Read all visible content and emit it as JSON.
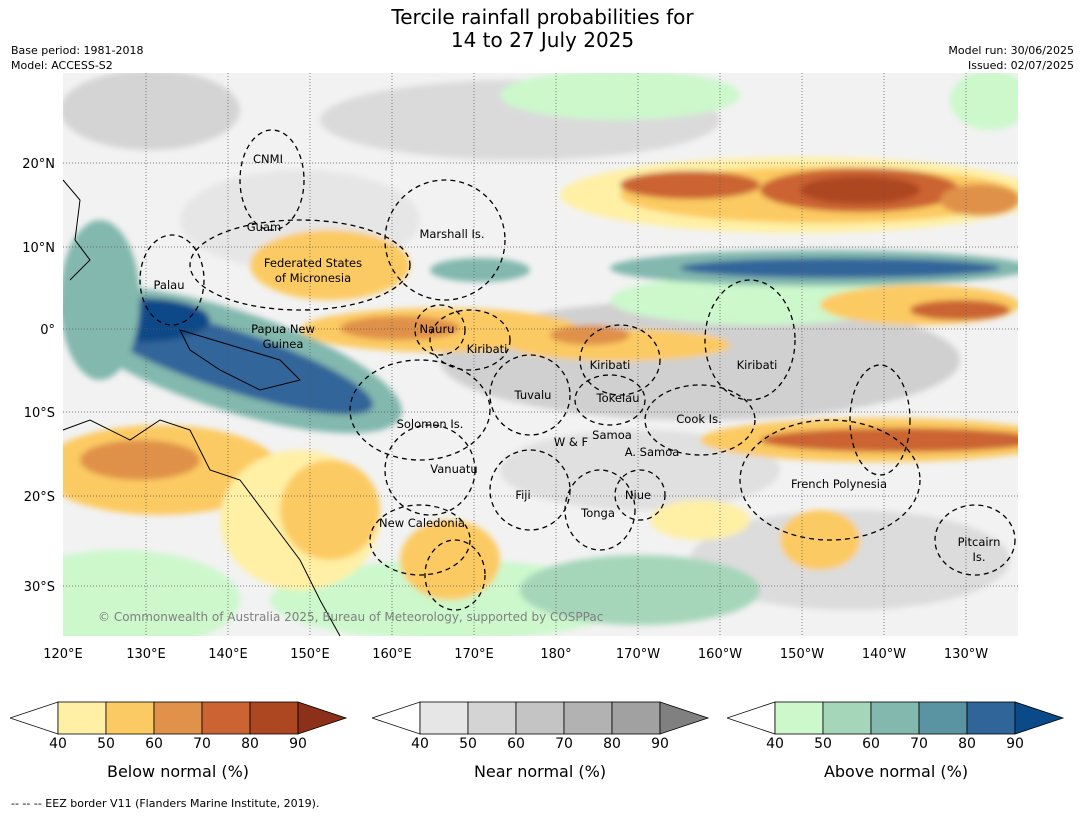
{
  "title": {
    "line1": "Tercile rainfall probabilities for",
    "line2": "14 to 27 July 2025"
  },
  "meta": {
    "base_period": "Base period: 1981-2018",
    "model": "Model: ACCESS-S2",
    "model_run": "Model run: 30/06/2025",
    "issued": "Issued: 02/07/2025"
  },
  "map": {
    "lon_labels": [
      "120°E",
      "130°E",
      "140°E",
      "150°E",
      "160°E",
      "170°E",
      "180°",
      "170°W",
      "160°W",
      "150°W",
      "140°W",
      "130°W"
    ],
    "lat_labels": [
      "20°N",
      "10°N",
      "0°",
      "10°S",
      "20°S",
      "30°S"
    ],
    "regions": [
      "CNMI",
      "Guam",
      "Marshall Is.",
      "Federated States",
      "of Micronesia",
      "Palau",
      "Papua New",
      "Guinea",
      "Nauru",
      "Kiribati",
      "Kiribati",
      "Kiribati",
      "Tuvalu",
      "Tokelau",
      "Solomon Is.",
      "Cook Is.",
      "Samoa",
      "W & F",
      "A. Samoa",
      "Vanuatu",
      "Fiji",
      "Niue",
      "French Polynesia",
      "Tonga",
      "New Caledonia",
      "Pitcairn",
      "Is."
    ],
    "credit": "© Commonwealth of Australia 2025, Bureau of Meteorology, supported by COSPPac"
  },
  "colorbars": [
    {
      "title": "Below normal (%)",
      "ticks": [
        "40",
        "50",
        "60",
        "70",
        "80",
        "90"
      ],
      "colors": [
        "#fff0a6",
        "#fcca62",
        "#e0914a",
        "#cb6432",
        "#ad4721",
        "#8c301a"
      ]
    },
    {
      "title": "Near normal (%)",
      "ticks": [
        "40",
        "50",
        "60",
        "70",
        "80",
        "90"
      ],
      "colors": [
        "#e6e6e6",
        "#d4d4d4",
        "#c4c4c4",
        "#b2b2b2",
        "#a1a1a1",
        "#808080"
      ]
    },
    {
      "title": "Above normal (%)",
      "ticks": [
        "40",
        "50",
        "60",
        "70",
        "80",
        "90"
      ],
      "colors": [
        "#ccf8cc",
        "#a6d6ba",
        "#82b8ae",
        "#5a94a2",
        "#30659a",
        "#0a4a88"
      ]
    }
  ],
  "footnote": "--  --  -- EEZ border V11 (Flanders Marine Institute, 2019)."
}
